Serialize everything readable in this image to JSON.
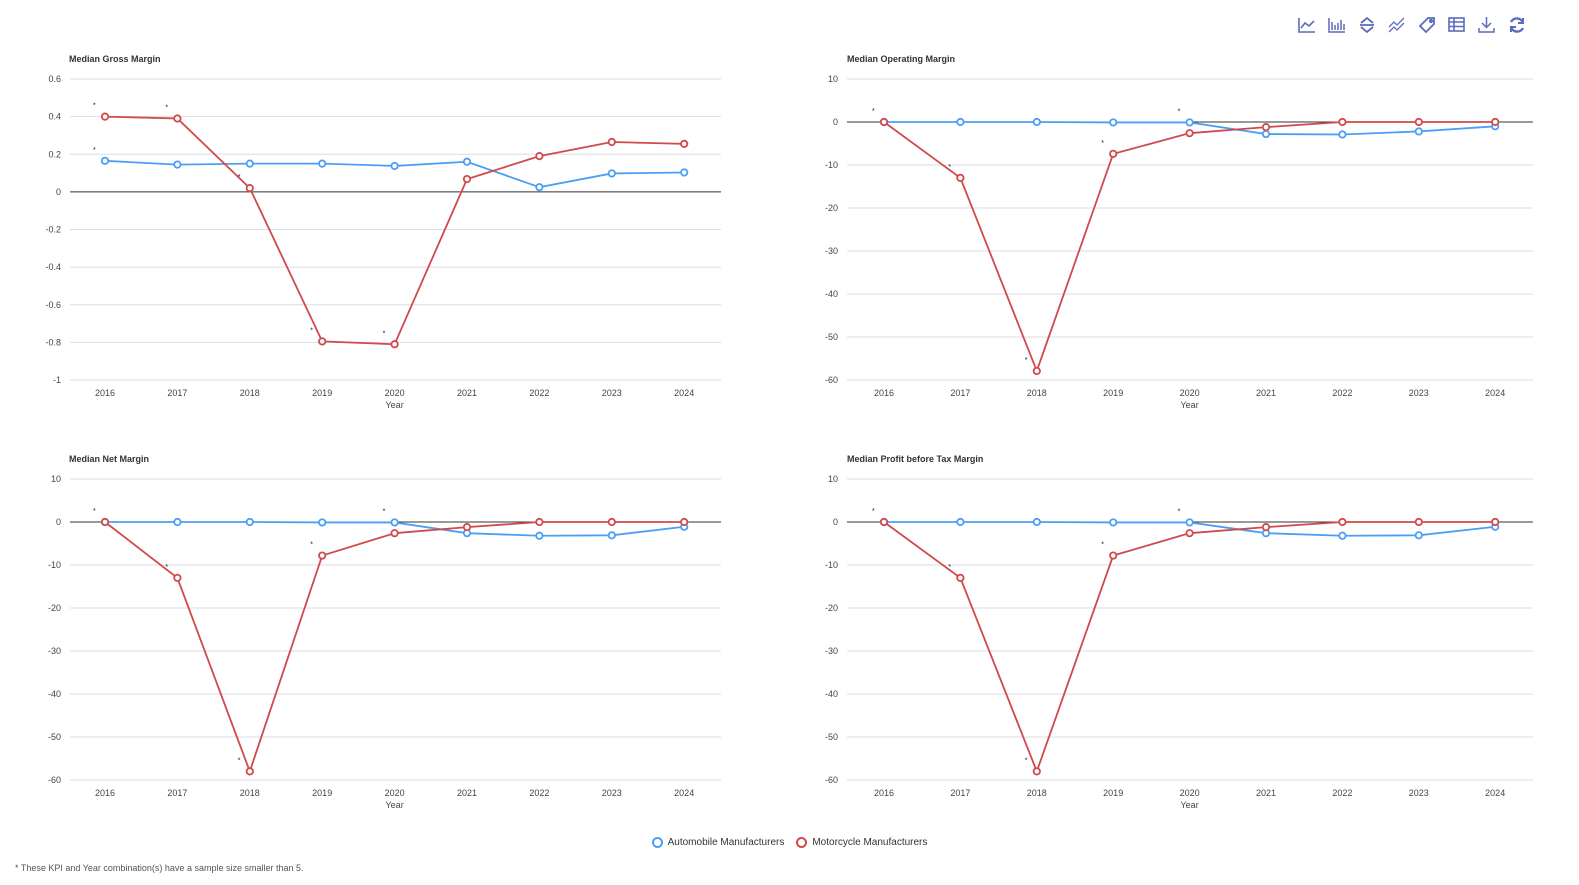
{
  "toolbar": [
    {
      "name": "line-chart-icon"
    },
    {
      "name": "bar-chart-icon"
    },
    {
      "name": "expand-collapse-icon"
    },
    {
      "name": "compare-lines-icon"
    },
    {
      "name": "tag-icon"
    },
    {
      "name": "table-icon"
    },
    {
      "name": "download-icon"
    },
    {
      "name": "refresh-icon"
    }
  ],
  "colors": {
    "auto": "#4a9ff5",
    "moto": "#d0494b"
  },
  "legend": {
    "auto": "Automobile Manufacturers",
    "moto": "Motorcycle Manufacturers"
  },
  "footnote": "* These KPI and Year combination(s) have a sample size smaller than 5.",
  "chart_data": [
    {
      "type": "line",
      "title": "Median Gross Margin",
      "xlabel": "Year",
      "categories": [
        "2016",
        "2017",
        "2018",
        "2019",
        "2020",
        "2021",
        "2022",
        "2023",
        "2024"
      ],
      "ylim": [
        -1,
        0.6
      ],
      "yticks": [
        0.6,
        0.4,
        0.2,
        0,
        -0.2,
        -0.4,
        -0.6,
        -0.8,
        -1
      ],
      "series": [
        {
          "name": "Automobile Manufacturers",
          "key": "auto",
          "values": [
            0.165,
            0.145,
            0.15,
            0.15,
            0.138,
            0.16,
            0.025,
            0.098,
            0.103
          ],
          "flagged": [
            "2016"
          ]
        },
        {
          "name": "Motorcycle Manufacturers",
          "key": "moto",
          "values": [
            0.4,
            0.39,
            0.02,
            -0.795,
            -0.81,
            0.068,
            0.19,
            0.265,
            0.255
          ],
          "flagged": [
            "2016",
            "2017",
            "2018",
            "2019",
            "2020"
          ]
        }
      ]
    },
    {
      "type": "line",
      "title": "Median Operating Margin",
      "xlabel": "Year",
      "categories": [
        "2016",
        "2017",
        "2018",
        "2019",
        "2020",
        "2021",
        "2022",
        "2023",
        "2024"
      ],
      "ylim": [
        -60,
        10
      ],
      "yticks": [
        10,
        0,
        -10,
        -20,
        -30,
        -40,
        -50,
        -60
      ],
      "series": [
        {
          "name": "Automobile Manufacturers",
          "key": "auto",
          "values": [
            0,
            0,
            0,
            -0.1,
            -0.1,
            -2.8,
            -2.9,
            -2.2,
            -1.0
          ],
          "flagged": [
            "2020"
          ]
        },
        {
          "name": "Motorcycle Manufacturers",
          "key": "moto",
          "values": [
            0,
            -13,
            -57.9,
            -7.4,
            -2.6,
            -1.2,
            0,
            0,
            0
          ],
          "flagged": [
            "2016",
            "2017",
            "2018",
            "2019"
          ]
        }
      ]
    },
    {
      "type": "line",
      "title": "Median Net Margin",
      "xlabel": "Year",
      "categories": [
        "2016",
        "2017",
        "2018",
        "2019",
        "2020",
        "2021",
        "2022",
        "2023",
        "2024"
      ],
      "ylim": [
        -60,
        10
      ],
      "yticks": [
        10,
        0,
        -10,
        -20,
        -30,
        -40,
        -50,
        -60
      ],
      "series": [
        {
          "name": "Automobile Manufacturers",
          "key": "auto",
          "values": [
            0,
            0,
            0,
            -0.1,
            -0.1,
            -2.6,
            -3.2,
            -3.1,
            -1.1
          ],
          "flagged": [
            "2020"
          ]
        },
        {
          "name": "Motorcycle Manufacturers",
          "key": "moto",
          "values": [
            0,
            -13,
            -58,
            -7.8,
            -2.6,
            -1.2,
            0,
            0,
            0
          ],
          "flagged": [
            "2016",
            "2017",
            "2018",
            "2019"
          ]
        }
      ]
    },
    {
      "type": "line",
      "title": "Median Profit before Tax Margin",
      "xlabel": "Year",
      "categories": [
        "2016",
        "2017",
        "2018",
        "2019",
        "2020",
        "2021",
        "2022",
        "2023",
        "2024"
      ],
      "ylim": [
        -60,
        10
      ],
      "yticks": [
        10,
        0,
        -10,
        -20,
        -30,
        -40,
        -50,
        -60
      ],
      "series": [
        {
          "name": "Automobile Manufacturers",
          "key": "auto",
          "values": [
            0,
            0,
            0,
            -0.1,
            -0.1,
            -2.6,
            -3.2,
            -3.1,
            -1.1
          ],
          "flagged": [
            "2020"
          ]
        },
        {
          "name": "Motorcycle Manufacturers",
          "key": "moto",
          "values": [
            0,
            -13,
            -58,
            -7.8,
            -2.6,
            -1.2,
            0,
            0,
            0
          ],
          "flagged": [
            "2016",
            "2017",
            "2018",
            "2019"
          ]
        }
      ]
    }
  ]
}
